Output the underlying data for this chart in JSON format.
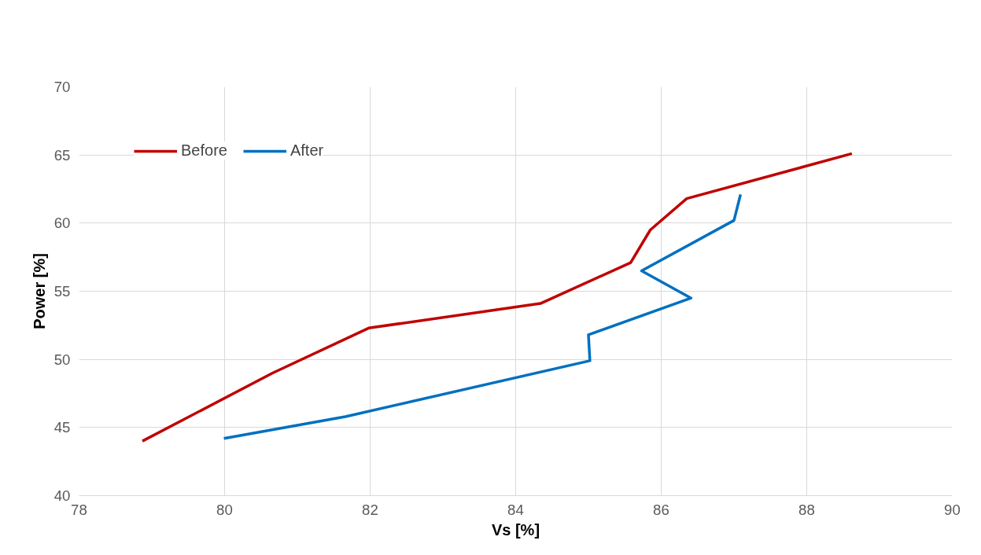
{
  "chart_data": {
    "type": "line",
    "xlabel": "Vs [%]",
    "ylabel": "Power [%]",
    "xlim": [
      78,
      90
    ],
    "xticks": [
      78,
      80,
      82,
      84,
      86,
      88,
      90
    ],
    "ylim": [
      40,
      70
    ],
    "yticks": [
      40,
      45,
      50,
      55,
      60,
      65,
      70
    ],
    "grid": true,
    "legend": "top left",
    "marker": "none",
    "line_style": "solid",
    "series": [
      {
        "name": "Before",
        "color": "#c00000",
        "x": [
          78.87,
          80.66,
          81.98,
          84.34,
          85.58,
          85.85,
          86.35,
          88.62
        ],
        "values": [
          44.0,
          49.0,
          52.3,
          54.1,
          57.1,
          59.5,
          61.8,
          65.1
        ]
      },
      {
        "name": "After",
        "color": "#0070c0",
        "x": [
          79.99,
          81.66,
          85.02,
          85.0,
          86.41,
          85.73,
          87.0,
          87.09
        ],
        "values": [
          44.2,
          45.8,
          49.9,
          51.8,
          54.5,
          56.5,
          60.2,
          62.1
        ]
      }
    ]
  }
}
